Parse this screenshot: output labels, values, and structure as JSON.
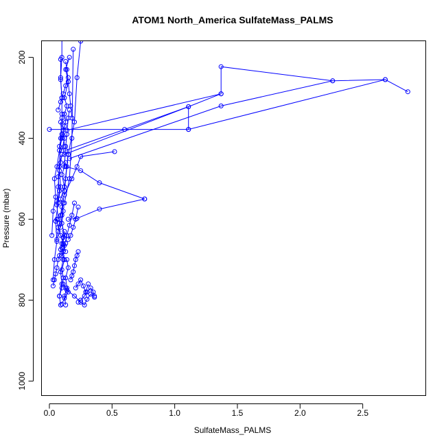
{
  "chart_data": {
    "type": "scatter",
    "title": "ATOM1 North_America SulfateMass_PALMS",
    "xlabel": "SulfateMass_PALMS",
    "ylabel": "Pressure (mbar)",
    "xlim": [
      -0.06,
      3.0
    ],
    "ylim": [
      1035,
      160
    ],
    "y_reversed": true,
    "x_ticks": [
      0.0,
      0.5,
      1.0,
      1.5,
      2.0,
      2.5
    ],
    "x_tick_labels": [
      "0.0",
      "0.5",
      "1.0",
      "1.5",
      "2.0",
      "2.5"
    ],
    "y_ticks": [
      200,
      400,
      600,
      800,
      1000
    ],
    "y_tick_labels": [
      "200",
      "400",
      "600",
      "800",
      "1000"
    ],
    "grid": false,
    "legend": "none",
    "color": "#0000ff",
    "series": [
      {
        "x": [
          0.1,
          0.12,
          0.15,
          0.13,
          0.11,
          0.14,
          0.2,
          0.25,
          0.28,
          0.3,
          0.33,
          0.36
        ],
        "y": [
          810,
          795,
          780,
          770,
          760,
          775,
          790,
          805,
          812,
          798,
          785,
          793
        ]
      },
      {
        "x": [
          0.08,
          0.1,
          0.09,
          0.11,
          0.1,
          0.12,
          0.1,
          0.11,
          0.09,
          0.12,
          0.1,
          0.13
        ],
        "y": [
          790,
          760,
          730,
          700,
          670,
          640,
          610,
          580,
          550,
          520,
          490,
          460
        ]
      },
      {
        "x": [
          0.1,
          0.12,
          0.11,
          0.13,
          0.12,
          0.14,
          0.12,
          0.15,
          0.13,
          0.16
        ],
        "y": [
          430,
          400,
          380,
          360,
          340,
          320,
          300,
          260,
          230,
          200
        ]
      },
      {
        "x": [
          0.12,
          0.16,
          0.18,
          0.19
        ],
        "y": [
          560,
          500,
          400,
          180
        ]
      },
      {
        "x": [
          0.12,
          0.15,
          0.2,
          0.22,
          0.25
        ],
        "y": [
          520,
          440,
          360,
          250,
          160
        ]
      },
      {
        "x": [
          0.1,
          0.09,
          0.1,
          0.1
        ],
        "y": [
          300,
          250,
          200,
          150
        ]
      },
      {
        "x": [
          0.12,
          0.18,
          0.22,
          0.25,
          0.52
        ],
        "y": [
          540,
          500,
          470,
          445,
          433
        ]
      },
      {
        "x": [
          0.13,
          0.25,
          0.4,
          0.76
        ],
        "y": [
          470,
          480,
          510,
          550
        ]
      },
      {
        "x": [
          0.15,
          0.22,
          0.4,
          0.76
        ],
        "y": [
          600,
          598,
          575,
          550
        ]
      },
      {
        "x": [
          0.13,
          1.11,
          1.11
        ],
        "y": [
          430,
          322,
          378
        ]
      },
      {
        "x": [
          0.12,
          1.11,
          1.37,
          1.37
        ],
        "y": [
          440,
          322,
          290,
          290
        ]
      },
      {
        "x": [
          0.14,
          1.37,
          1.37,
          2.26
        ],
        "y": [
          380,
          290,
          223,
          258
        ]
      },
      {
        "x": [
          0.0,
          0.6,
          1.11,
          2.68,
          2.86
        ],
        "y": [
          378,
          378,
          378,
          255,
          285
        ]
      },
      {
        "x": [
          0.16,
          1.37,
          2.26,
          2.68
        ],
        "y": [
          450,
          320,
          258,
          255
        ]
      },
      {
        "x": [
          0.03,
          0.04,
          0.06,
          0.05,
          0.07,
          0.09,
          0.08,
          0.1
        ],
        "y": [
          750,
          700,
          655,
          605,
          560,
          520,
          480,
          440
        ]
      },
      {
        "x": [
          0.02,
          0.03,
          0.05,
          0.04,
          0.06,
          0.08,
          0.1,
          0.12
        ],
        "y": [
          640,
          580,
          545,
          500,
          470,
          430,
          400,
          370
        ]
      },
      {
        "x": [
          0.05,
          0.06,
          0.07,
          0.09,
          0.11,
          0.13
        ],
        "y": [
          605,
          600,
          620,
          640,
          660,
          680
        ]
      },
      {
        "x": [
          0.03,
          0.04,
          0.05,
          0.06,
          0.07,
          0.08,
          0.09,
          0.1,
          0.11,
          0.12
        ],
        "y": [
          765,
          750,
          735,
          720,
          700,
          690,
          675,
          660,
          645,
          630
        ]
      },
      {
        "x": [
          0.09,
          0.08,
          0.1,
          0.11,
          0.1,
          0.12,
          0.11,
          0.13
        ],
        "y": [
          812,
          790,
          770,
          745,
          725,
          700,
          680,
          660
        ]
      },
      {
        "x": [
          0.13,
          0.12,
          0.14,
          0.13,
          0.15,
          0.14
        ],
        "y": [
          812,
          790,
          770,
          745,
          720,
          700
        ]
      },
      {
        "x": [
          0.17,
          0.18,
          0.19,
          0.2,
          0.21,
          0.22,
          0.23
        ],
        "y": [
          750,
          740,
          730,
          715,
          700,
          690,
          680
        ]
      },
      {
        "x": [
          0.21,
          0.23,
          0.25,
          0.27,
          0.29,
          0.31
        ],
        "y": [
          770,
          760,
          750,
          765,
          780,
          760
        ]
      },
      {
        "x": [
          0.23,
          0.25,
          0.28,
          0.3,
          0.33,
          0.35,
          0.36
        ],
        "y": [
          805,
          800,
          790,
          780,
          770,
          780,
          790
        ]
      },
      {
        "x": [
          0.07,
          0.06,
          0.08,
          0.07,
          0.09,
          0.08,
          0.1,
          0.09
        ],
        "y": [
          600,
          565,
          530,
          495,
          460,
          420,
          390,
          360
        ]
      },
      {
        "x": [
          0.06,
          0.07,
          0.08,
          0.09,
          0.1
        ],
        "y": [
          555,
          520,
          470,
          400,
          350
        ]
      },
      {
        "x": [
          0.1,
          0.12,
          0.14,
          0.16,
          0.18,
          0.2
        ],
        "y": [
          690,
          665,
          640,
          615,
          590,
          560
        ]
      },
      {
        "x": [
          0.15,
          0.17,
          0.19,
          0.21,
          0.23
        ],
        "y": [
          650,
          640,
          620,
          600,
          570
        ]
      },
      {
        "x": [
          0.12,
          0.13,
          0.14,
          0.15,
          0.16
        ],
        "y": [
          470,
          420,
          390,
          350,
          330
        ]
      },
      {
        "x": [
          0.09,
          0.1,
          0.11,
          0.12,
          0.13,
          0.14,
          0.15
        ],
        "y": [
          620,
          590,
          560,
          530,
          500,
          470,
          440
        ]
      },
      {
        "x": [
          0.06,
          0.07,
          0.08,
          0.09,
          0.1
        ],
        "y": [
          650,
          630,
          610,
          590,
          570
        ]
      },
      {
        "x": [
          0.09,
          0.09,
          0.1,
          0.1,
          0.11,
          0.12
        ],
        "y": [
          205,
          255,
          300,
          340,
          380,
          420
        ]
      },
      {
        "x": [
          0.07,
          0.09,
          0.11,
          0.13,
          0.15
        ],
        "y": [
          330,
          310,
          290,
          270,
          250
        ]
      },
      {
        "x": [
          0.13,
          0.14,
          0.15,
          0.16,
          0.17,
          0.18
        ],
        "y": [
          210,
          230,
          260,
          290,
          320,
          350
        ]
      }
    ]
  }
}
